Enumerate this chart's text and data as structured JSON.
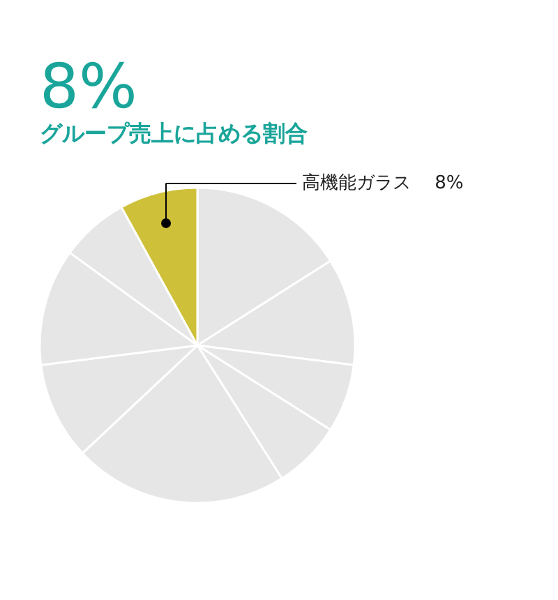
{
  "chart_data": {
    "type": "pie",
    "title": "8%",
    "subtitle": "グループ売上に占める割合",
    "categories": [
      null,
      null,
      null,
      null,
      null,
      null,
      null,
      null,
      "高機能ガラス"
    ],
    "values": [
      16,
      11,
      7,
      7,
      22,
      10,
      12,
      7,
      8
    ],
    "colors": [
      "#e6e6e6",
      "#e6e6e6",
      "#e6e6e6",
      "#e6e6e6",
      "#e6e6e6",
      "#e6e6e6",
      "#e6e6e6",
      "#e6e6e6",
      "#cfc03a"
    ],
    "value_labels": [
      null,
      null,
      null,
      null,
      null,
      null,
      null,
      null,
      "8%"
    ]
  }
}
